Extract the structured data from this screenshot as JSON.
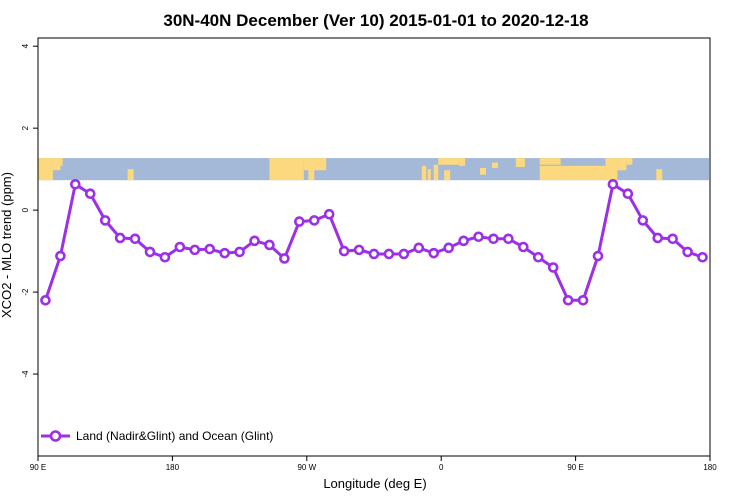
{
  "chart_data": {
    "type": "line",
    "title": "30N-40N December (Ver 10)   2015-01-01 to 2020-12-18",
    "xlabel": "Longitude (deg E)",
    "ylabel": "XCO2 - MLO trend (ppm)",
    "xlim": [
      90,
      540
    ],
    "ylim": [
      -6,
      4.2
    ],
    "x_ticks": [
      {
        "value": 90,
        "label": "90 E"
      },
      {
        "value": 180,
        "label": "180"
      },
      {
        "value": 270,
        "label": "90 W"
      },
      {
        "value": 360,
        "label": "0"
      },
      {
        "value": 450,
        "label": "90 E"
      },
      {
        "value": 540,
        "label": "180"
      }
    ],
    "y_ticks": [
      {
        "value": -4,
        "label": "-4"
      },
      {
        "value": -2,
        "label": "-2"
      },
      {
        "value": 0,
        "label": "0"
      },
      {
        "value": 2,
        "label": "2"
      },
      {
        "value": 4,
        "label": "4"
      }
    ],
    "grid": false,
    "legend_position": "bottom-left",
    "map_strip": {
      "y_top": 1.27,
      "y_bottom": 0.73,
      "ocean_color": "#a4b8d8",
      "land_color": "#fcd97e"
    },
    "series": [
      {
        "name": "Land (Nadir&Glint) and Ocean (Glint)",
        "color": "#9b30e8",
        "x": [
          95,
          105,
          115,
          125,
          135,
          145,
          155,
          165,
          175,
          185,
          195,
          205,
          215,
          225,
          235,
          245,
          255,
          265,
          275,
          285,
          295,
          305,
          315,
          325,
          335,
          345,
          355,
          365,
          375,
          385,
          395,
          405,
          415,
          425,
          435,
          445,
          455,
          465,
          475,
          485,
          495,
          505,
          515,
          525,
          535
        ],
        "y": [
          -2.2,
          -1.12,
          0.63,
          0.4,
          -0.25,
          -0.68,
          -0.7,
          -1.02,
          -1.15,
          -0.9,
          -0.97,
          -0.95,
          -1.05,
          -1.02,
          -0.75,
          -0.85,
          -1.18,
          -0.28,
          -0.25,
          -0.1,
          -1.0,
          -0.97,
          -1.07,
          -1.07,
          -1.07,
          -0.92,
          -1.05,
          -0.92,
          -0.75,
          -0.65,
          -0.7,
          -0.7,
          -0.9,
          -1.15,
          -1.4,
          -2.2,
          -2.2,
          -1.12,
          0.63,
          0.4,
          -0.25,
          -0.68,
          -0.7,
          -1.02,
          -1.15
        ]
      }
    ]
  }
}
